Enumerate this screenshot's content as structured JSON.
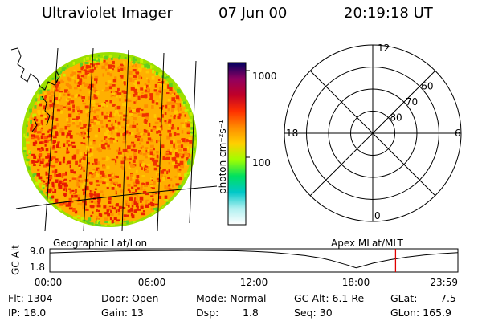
{
  "header": {
    "instrument": "Ultraviolet Imager",
    "date": "07 Jun 00",
    "time": "20:19:18 UT"
  },
  "panels": {
    "geo_label": "Geographic Lat/Lon",
    "apex_label": "Apex  MLat/MLT"
  },
  "colorbar": {
    "unit_label": "photon cm⁻²s⁻¹",
    "ticks": [
      {
        "label": "1000",
        "value": 1000
      },
      {
        "label": "100",
        "value": 100
      }
    ],
    "scale": "log",
    "colors": [
      "#ffffff",
      "#b0f0f0",
      "#00c8c8",
      "#00e060",
      "#a0ff00",
      "#ffd000",
      "#ff8c00",
      "#ff3000",
      "#c00028",
      "#900060",
      "#000060"
    ]
  },
  "polar_plot": {
    "mlt_labels": [
      {
        "label": "12",
        "hour": 12
      },
      {
        "label": "18",
        "hour": 18
      },
      {
        "label": "6",
        "hour": 6
      },
      {
        "label": "0",
        "hour": 0
      }
    ],
    "lat_labels": [
      {
        "label": "60",
        "lat": 60
      },
      {
        "label": "70",
        "lat": 70
      },
      {
        "label": "80",
        "lat": 80
      }
    ]
  },
  "chart_data": {
    "type": "line",
    "ylabel": "GC Alt",
    "y_ticks": [
      "9.0",
      "1.8"
    ],
    "ylim": [
      1.8,
      9.0
    ],
    "x_ticks": [
      "00:00",
      "06:00",
      "12:00",
      "18:00",
      "23:59"
    ],
    "x_range_hours": [
      0,
      23.983
    ],
    "series": [
      {
        "x_hours": [
          0,
          2,
          4,
          6,
          8,
          10,
          11,
          12,
          13,
          14,
          15,
          16,
          16.5,
          17,
          17.5,
          18,
          18.5,
          19,
          20,
          21,
          22,
          23,
          23.983
        ],
        "values": [
          8.0,
          8.45,
          8.75,
          8.95,
          9.0,
          8.95,
          8.85,
          8.6,
          8.2,
          7.6,
          6.9,
          5.8,
          5.0,
          4.0,
          3.0,
          1.9,
          2.8,
          3.8,
          5.2,
          6.3,
          7.1,
          7.7,
          8.1
        ]
      }
    ],
    "current_time_hours": 20.32,
    "marker_color": "#e00000"
  },
  "footer": {
    "flt": "Flt: 1304",
    "ip": "IP: 18.0",
    "door": "Door: Open",
    "gain": "Gain: 13",
    "mode": "Mode: Normal",
    "dsp_label": "Dsp:",
    "dsp_value": "1.8",
    "gc_alt": "GC Alt: 6.1 Re",
    "seq": "Seq: 30",
    "glat_label": "GLat:",
    "glat_value": "7.5",
    "glon": "GLon: 165.9"
  }
}
